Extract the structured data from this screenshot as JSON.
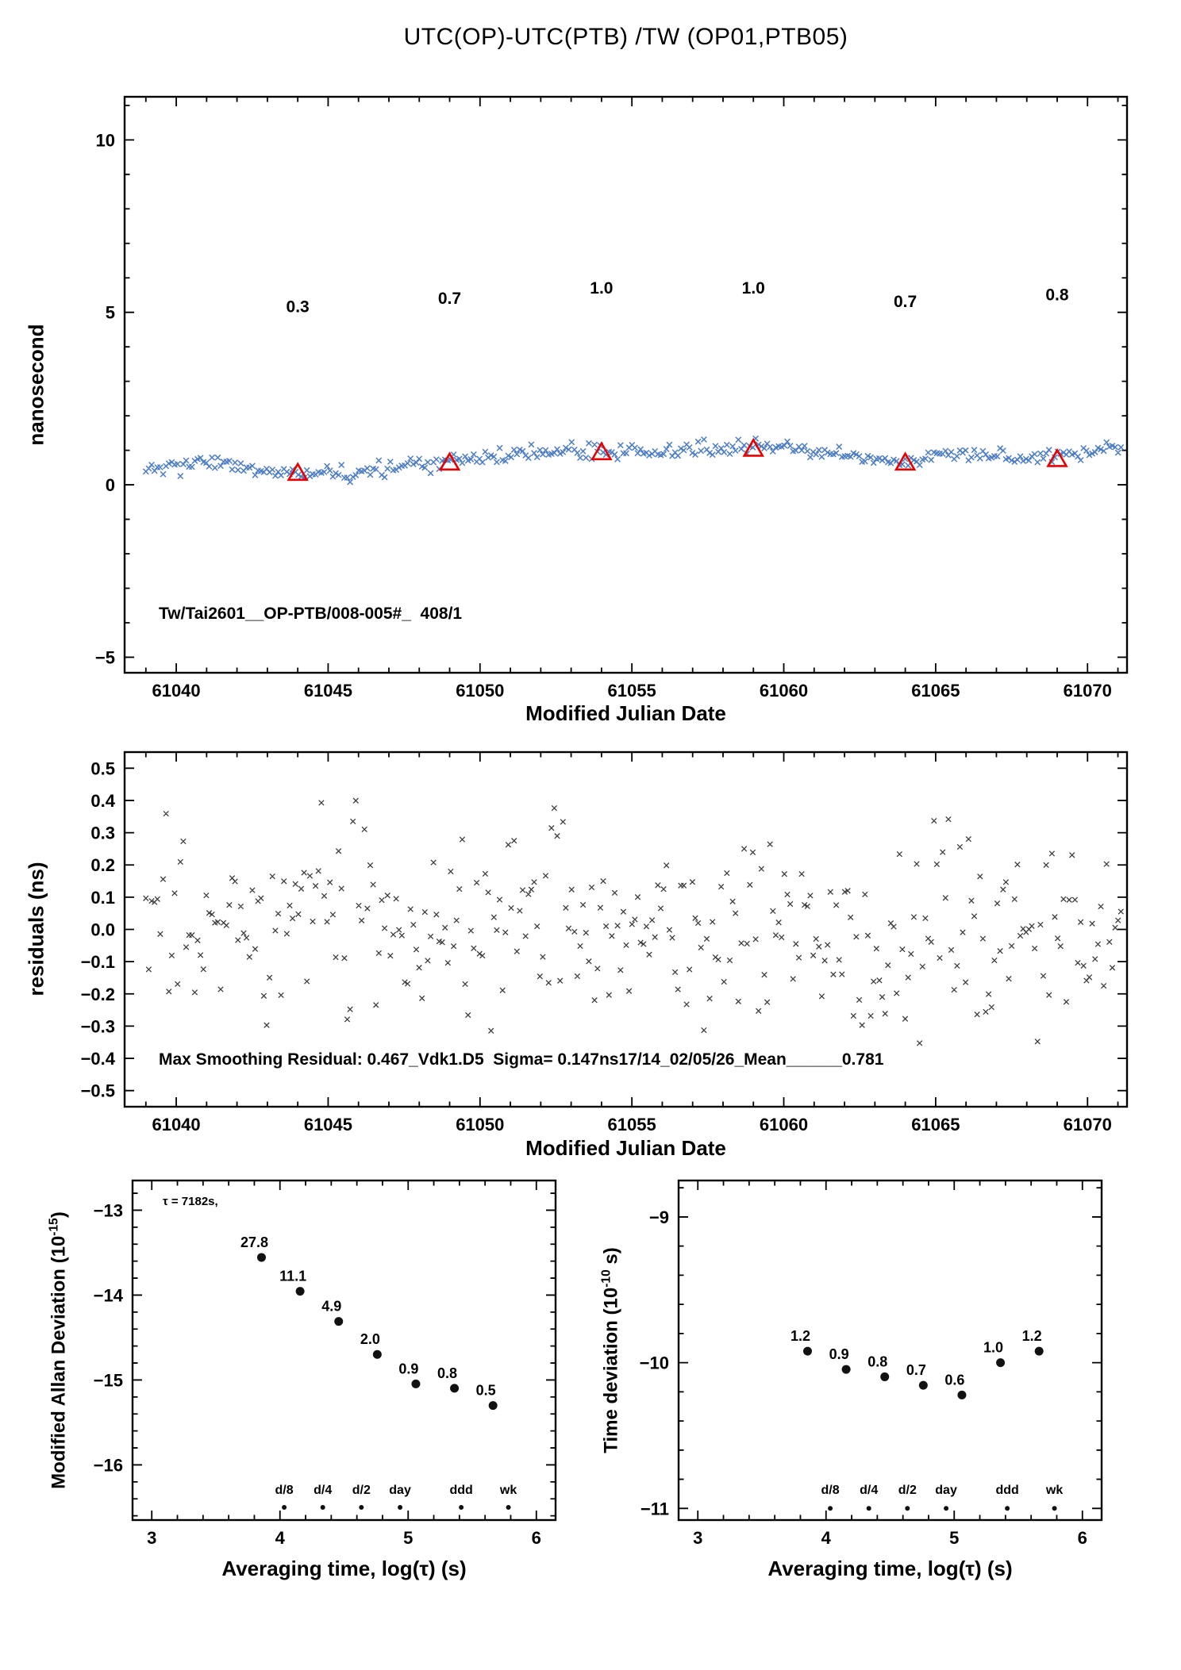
{
  "figure": {
    "background": "#ffffff",
    "accent_red": "#e80000",
    "series_blue": "#4d7dc4",
    "residual_gray": "#3d3d3d",
    "point_black": "#111111"
  },
  "chart_data": [
    {
      "id": "phase-difference",
      "type": "scatter",
      "title": "UTC(OP)-UTC(PTB)  /TW  (OP01,PTB05)",
      "xlabel": "Modified Julian Date",
      "ylabel": "nanosecond",
      "annotation": "Tw/Tai2601__OP-PTB/008-005#_  408/1",
      "xlim": [
        61038.3,
        61071.3
      ],
      "ylim": [
        -5.45,
        11.25
      ],
      "xtick_vals": [
        61040,
        61045,
        61050,
        61055,
        61060,
        61065,
        61070
      ],
      "xtick_labels": [
        "61040",
        "61045",
        "61050",
        "61055",
        "61060",
        "61065",
        "61070"
      ],
      "ytick_vals": [
        10,
        5,
        0,
        -5
      ],
      "ytick_labels": [
        "10",
        "5",
        "0",
        "−5"
      ],
      "series": {
        "marker": "x",
        "color": "#4d7dc4",
        "n_points": 340,
        "seed": 20,
        "noise_sigma": 0.11,
        "data_x_range": [
          61039.0,
          61071.1
        ],
        "trend_x_start": 61039,
        "trend_y": [
          0.45,
          0.55,
          0.62,
          0.5,
          0.38,
          0.33,
          0.28,
          0.35,
          0.42,
          0.58,
          0.66,
          0.78,
          0.85,
          0.98,
          1.02,
          0.95,
          1.0,
          0.96,
          1.0,
          1.02,
          1.05,
          1.1,
          0.98,
          0.85,
          0.78,
          0.72,
          0.84,
          0.9,
          0.86,
          0.8,
          0.85,
          0.95,
          1.0
        ]
      },
      "calibration_points": {
        "marker": "open-triangle",
        "color": "#e80000",
        "x": [
          61044,
          61049,
          61054,
          61059,
          61064,
          61069
        ],
        "y": [
          0.35,
          0.65,
          0.95,
          1.05,
          0.65,
          0.75
        ],
        "labels": [
          "0.3",
          "0.7",
          "1.0",
          "1.0",
          "0.7",
          "0.8"
        ],
        "label_y": [
          5.0,
          5.25,
          5.55,
          5.55,
          5.15,
          5.35
        ]
      }
    },
    {
      "id": "residuals",
      "type": "scatter",
      "xlabel": "Modified Julian Date",
      "ylabel": "residuals (ns)",
      "annotation": "Max Smoothing Residual: 0.467_Vdk1.D5  Sigma= 0.147ns17/14_02/05/26_Mean______0.781",
      "xlim": [
        61038.3,
        61071.3
      ],
      "ylim": [
        -0.55,
        0.55
      ],
      "xtick_vals": [
        61040,
        61045,
        61050,
        61055,
        61060,
        61065,
        61070
      ],
      "xtick_labels": [
        "61040",
        "61045",
        "61050",
        "61055",
        "61060",
        "61065",
        "61070"
      ],
      "ytick_vals": [
        0.5,
        0.4,
        0.3,
        0.2,
        0.1,
        0,
        -0.1,
        -0.2,
        -0.3,
        -0.4,
        -0.5
      ],
      "ytick_labels": [
        "0.5",
        "0.4",
        "0.3",
        "0.2",
        "0.1",
        "0.0",
        "−0.1",
        "−0.2",
        "−0.3",
        "−0.4",
        "−0.5"
      ],
      "series": {
        "marker": "x",
        "color": "#3d3d3d",
        "n_points": 340,
        "seed": 77,
        "sigma": 0.147,
        "clip": 0.47,
        "data_x_range": [
          61039.0,
          61071.1
        ]
      }
    },
    {
      "id": "modified-allan-deviation",
      "type": "scatter",
      "xlabel": "Averaging time, log(τ) (s)",
      "ylabel_pre": "Modified Allan Deviation (10",
      "ylabel_sup": "-15",
      "ylabel_post": ")",
      "tau_note": "τ = 7182s,",
      "xlim": [
        2.85,
        6.15
      ],
      "ylim": [
        -16.65,
        -12.65
      ],
      "xtick_vals": [
        3,
        4,
        5,
        6
      ],
      "xtick_labels": [
        "3",
        "4",
        "5",
        "6"
      ],
      "ytick_vals": [
        -13,
        -14,
        -15,
        -16
      ],
      "ytick_labels": [
        "−13",
        "−14",
        "−15",
        "−16"
      ],
      "points": {
        "x": [
          3.856,
          4.157,
          4.458,
          4.759,
          5.06,
          5.361,
          5.662
        ],
        "y": [
          -13.556,
          -13.955,
          -14.31,
          -14.699,
          -15.046,
          -15.097,
          -15.301
        ],
        "labels": [
          "27.8",
          "11.1",
          "4.9",
          "2.0",
          "0.9",
          "0.8",
          "0.5"
        ]
      },
      "ref_marks": {
        "labels": [
          "d/8",
          "d/4",
          "d/2",
          "day",
          "ddd",
          "wk"
        ],
        "x": [
          4.033,
          4.334,
          4.635,
          4.937,
          5.414,
          5.782
        ],
        "label_y": -16.34,
        "dot_y": -16.5
      }
    },
    {
      "id": "time-deviation",
      "type": "scatter",
      "xlabel": "Averaging time, log(τ) (s)",
      "ylabel_pre": "Time deviation (10",
      "ylabel_sup": "-10",
      "ylabel_post": " s)",
      "xlim": [
        2.85,
        6.15
      ],
      "ylim": [
        -11.08,
        -8.75
      ],
      "xtick_vals": [
        3,
        4,
        5,
        6
      ],
      "xtick_labels": [
        "3",
        "4",
        "5",
        "6"
      ],
      "ytick_vals": [
        -9,
        -10,
        -11
      ],
      "ytick_labels": [
        "−9",
        "−10",
        "−11"
      ],
      "points": {
        "x": [
          3.856,
          4.157,
          4.458,
          4.759,
          5.06,
          5.361,
          5.662
        ],
        "y": [
          -9.921,
          -10.046,
          -10.097,
          -10.155,
          -10.222,
          -10.0,
          -9.921
        ],
        "labels": [
          "1.2",
          "0.9",
          "0.8",
          "0.7",
          "0.6",
          "1.0",
          "1.2"
        ]
      },
      "ref_marks": {
        "labels": [
          "d/8",
          "d/4",
          "d/2",
          "day",
          "ddd",
          "wk"
        ],
        "x": [
          4.033,
          4.334,
          4.635,
          4.937,
          5.414,
          5.782
        ],
        "label_y": -10.9,
        "dot_y": -11.0
      }
    }
  ]
}
